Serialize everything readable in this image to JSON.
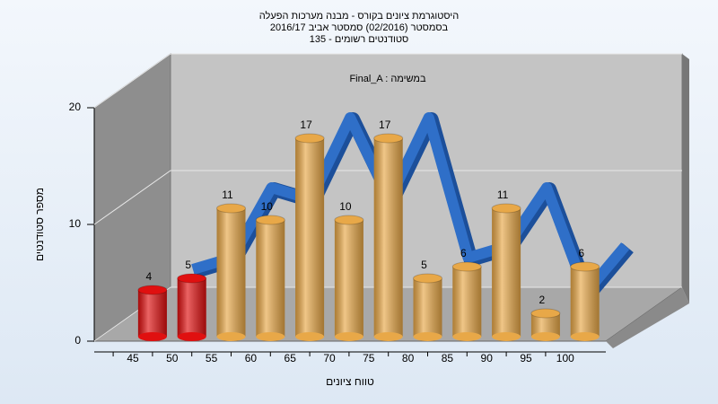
{
  "chart_data": {
    "type": "bar",
    "title_lines": [
      "היסטוגרמת ציונים בקורס - מבנה מערכות הפעלה",
      "בסמסטר  (02/2016)  סמסטר אביב 2016/17",
      "סטודנטים רשומים - 135"
    ],
    "subtitle": "Final_A : במשימה",
    "x_label": "טווח ציונים",
    "y_label": "מספר סטודנטים",
    "categories": [
      "45",
      "50",
      "55",
      "60",
      "65",
      "70",
      "75",
      "80",
      "85",
      "90",
      "95",
      "100"
    ],
    "values": [
      4,
      5,
      11,
      10,
      17,
      10,
      17,
      5,
      6,
      11,
      2,
      6
    ],
    "colors": [
      "#e01010",
      "#e01010",
      "#e8a848",
      "#e8a848",
      "#e8a848",
      "#e8a848",
      "#e8a848",
      "#e8a848",
      "#e8a848",
      "#e8a848",
      "#e8a848",
      "#e8a848"
    ],
    "line_color": "#2f6fc8",
    "ylim": [
      0,
      20
    ],
    "yticks": [
      0,
      10,
      20
    ],
    "grid": true
  }
}
